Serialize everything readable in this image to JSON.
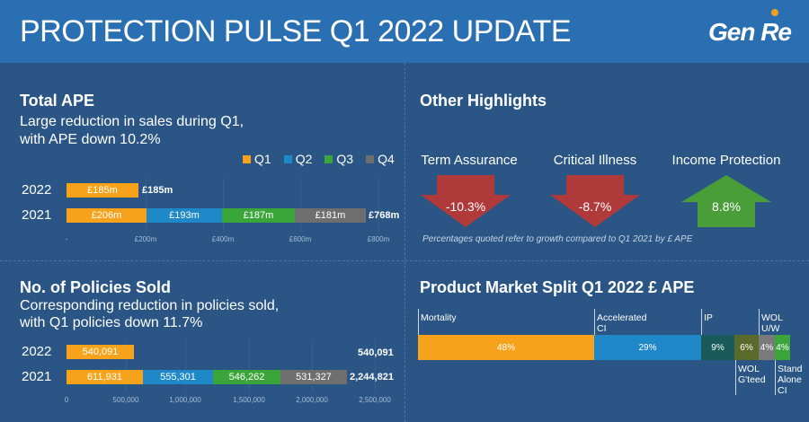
{
  "header": {
    "title": "PROTECTION PULSE Q1 2022 UPDATE",
    "logo": "Gen Re"
  },
  "colors": {
    "q1": "#f7a21b",
    "q2": "#1e88c8",
    "q3": "#3aa63a",
    "q4": "#6e6e6e",
    "header_bg": "#2b6fb3",
    "panel_bg": "#2a5585",
    "arrow_down": "#b03a3a",
    "arrow_up": "#4a9e3a"
  },
  "total_ape": {
    "title": "Total APE",
    "subtitle_line1": "Large reduction in sales during Q1,",
    "subtitle_line2": "with APE down 10.2%",
    "legend": [
      "Q1",
      "Q2",
      "Q3",
      "Q4"
    ],
    "rows": [
      {
        "year": "2022",
        "segments": [
          "£185m"
        ],
        "total": "£185m"
      },
      {
        "year": "2021",
        "segments": [
          "£206m",
          "£193m",
          "£187m",
          "£181m"
        ],
        "total": "£768m"
      }
    ],
    "axis_ticks": [
      "-",
      "£200m",
      "£400m",
      "£600m",
      "£800m"
    ]
  },
  "other_highlights": {
    "title": "Other Highlights",
    "items": [
      {
        "label": "Term Assurance",
        "value": "-10.3%",
        "direction": "down"
      },
      {
        "label": "Critical Illness",
        "value": "-8.7%",
        "direction": "down"
      },
      {
        "label": "Income Protection",
        "value": "8.8%",
        "direction": "up"
      }
    ],
    "footnote": "Percentages quoted refer to growth compared to Q1 2021 by £ APE"
  },
  "policies_sold": {
    "title": "No. of Policies Sold",
    "subtitle_line1": "Corresponding reduction in policies sold,",
    "subtitle_line2": "with Q1 policies down 11.7%",
    "rows": [
      {
        "year": "2022",
        "segments": [
          "540,091"
        ],
        "total": "540,091"
      },
      {
        "year": "2021",
        "segments": [
          "611,931",
          "555,301",
          "546,262",
          "531,327"
        ],
        "total": "2,244,821"
      }
    ],
    "axis_ticks": [
      "0",
      "500,000",
      "1,000,000",
      "1,500,000",
      "2,000,000",
      "2,500,000"
    ]
  },
  "product_market": {
    "title": "Product Market Split Q1 2022 £ APE",
    "segments": [
      {
        "name": "Mortality",
        "value": "48%",
        "color": "#f7a21b"
      },
      {
        "name": "Accelerated CI",
        "value": "29%",
        "color": "#1e88c8"
      },
      {
        "name": "IP",
        "value": "9%",
        "color": "#1a5a5a"
      },
      {
        "name": "WOL G'teed",
        "value": "6%",
        "color": "#5a6a2a"
      },
      {
        "name": "WOL U/W",
        "value": "4%",
        "color": "#7a7a7a"
      },
      {
        "name": "Stand Alone CI",
        "value": "4%",
        "color": "#3aa63a"
      }
    ],
    "labels": {
      "mortality": "Mortality",
      "acc_ci_1": "Accelerated",
      "acc_ci_2": "CI",
      "ip": "IP",
      "wol_uw_1": "WOL",
      "wol_uw_2": "U/W",
      "wol_gteed_1": "WOL",
      "wol_gteed_2": "G'teed",
      "sa_ci_1": "Stand",
      "sa_ci_2": "Alone",
      "sa_ci_3": "CI"
    }
  }
}
